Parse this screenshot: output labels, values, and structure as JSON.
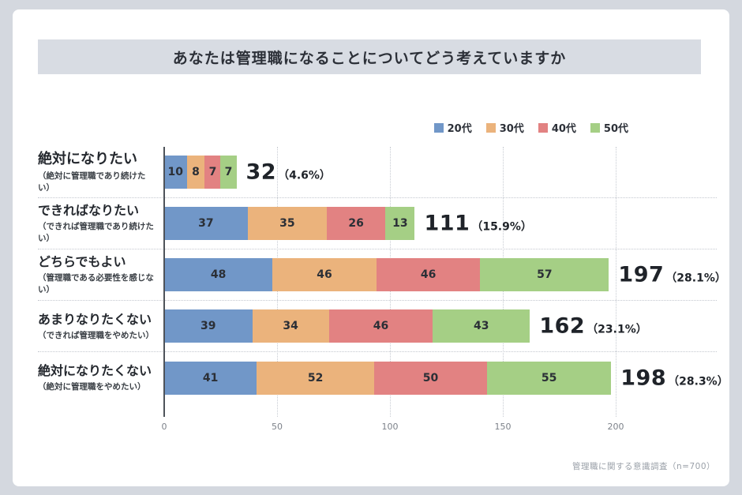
{
  "title": "あなたは管理職になることについてどう考えていますか",
  "footer": "管理職に関する意識調査（n=700）",
  "chart_data": {
    "type": "bar",
    "orientation": "horizontal",
    "stacked": true,
    "title": "あなたは管理職になることについてどう考えていますか",
    "legend_position": "top-right",
    "grid": "dotted-vertical",
    "xlim": [
      0,
      200
    ],
    "xticks": [
      0,
      50,
      100,
      150,
      200
    ],
    "series_names": [
      "20代",
      "30代",
      "40代",
      "50代"
    ],
    "colors": [
      "#7197c8",
      "#ebb37c",
      "#e28282",
      "#a5cf85"
    ],
    "categories": [
      {
        "label": "絶対になりたい",
        "sublabel": "（絶対に管理職であり続けたい）",
        "values": [
          10,
          8,
          7,
          7
        ],
        "total": 32,
        "percent": "（4.6%）"
      },
      {
        "label": "できればなりたい",
        "sublabel": "（できれば管理職であり続けたい）",
        "values": [
          37,
          35,
          26,
          13
        ],
        "total": 111,
        "percent": "（15.9%）"
      },
      {
        "label": "どちらでもよい",
        "sublabel": "（管理職である必要性を感じない）",
        "values": [
          48,
          46,
          46,
          57
        ],
        "total": 197,
        "percent": "（28.1%）"
      },
      {
        "label": "あまりなりたくない",
        "sublabel": "（できれば管理職をやめたい）",
        "values": [
          39,
          34,
          46,
          43
        ],
        "total": 162,
        "percent": "（23.1%）"
      },
      {
        "label": "絶対になりたくない",
        "sublabel": "（絶対に管理職をやめたい）",
        "values": [
          41,
          52,
          50,
          55
        ],
        "total": 198,
        "percent": "（28.3%）"
      }
    ]
  }
}
